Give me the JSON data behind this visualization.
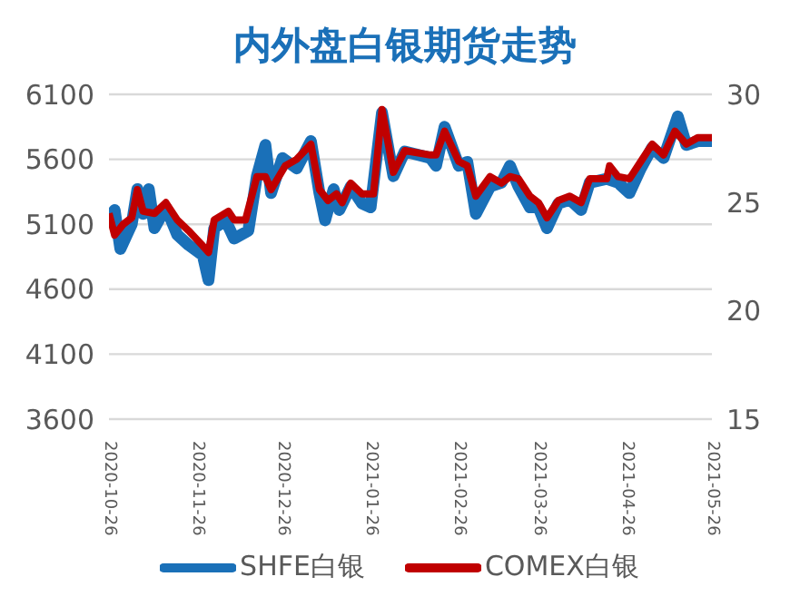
{
  "chart_data": {
    "type": "line",
    "title": "内外盘白银期货走势",
    "xlim": [
      "2020-10-26",
      "2021-05-26"
    ],
    "xticks": [
      "2020-10-26",
      "2020-11-26",
      "2020-12-26",
      "2021-01-26",
      "2021-02-26",
      "2021-03-26",
      "2021-04-26",
      "2021-05-26"
    ],
    "ylim": [
      3600,
      6100
    ],
    "yticks": [
      3600,
      4100,
      4600,
      5100,
      5600,
      6100
    ],
    "y2lim": [
      15,
      30
    ],
    "y2ticks": [
      15,
      20,
      25,
      30
    ],
    "grid": "y",
    "legend": "bottom",
    "line_style": "solid",
    "marker": "none",
    "series": [
      {
        "name": "SHFE白银",
        "color": "#1a70b8",
        "axis": "y",
        "x": [
          "2020-10-26",
          "2020-10-28",
          "2020-10-30",
          "2020-11-03",
          "2020-11-05",
          "2020-11-07",
          "2020-11-09",
          "2020-11-11",
          "2020-11-15",
          "2020-11-19",
          "2020-11-23",
          "2020-11-28",
          "2020-11-30",
          "2020-12-02",
          "2020-12-06",
          "2020-12-09",
          "2020-12-14",
          "2020-12-17",
          "2020-12-20",
          "2020-12-22",
          "2020-12-26",
          "2020-12-31",
          "2021-01-05",
          "2021-01-08",
          "2021-01-10",
          "2021-01-13",
          "2021-01-15",
          "2021-01-19",
          "2021-01-23",
          "2021-01-26",
          "2021-01-30",
          "2021-02-03",
          "2021-02-07",
          "2021-02-16",
          "2021-02-18",
          "2021-02-21",
          "2021-02-26",
          "2021-03-01",
          "2021-03-04",
          "2021-03-09",
          "2021-03-13",
          "2021-03-16",
          "2021-03-19",
          "2021-03-23",
          "2021-03-26",
          "2021-03-29",
          "2021-04-02",
          "2021-04-06",
          "2021-04-10",
          "2021-04-13",
          "2021-04-19",
          "2021-04-23",
          "2021-04-27",
          "2021-05-01",
          "2021-05-05",
          "2021-05-09",
          "2021-05-14",
          "2021-05-17",
          "2021-05-21",
          "2021-05-26"
        ],
        "values": [
          5130,
          5210,
          4910,
          5100,
          5370,
          5180,
          5370,
          5070,
          5230,
          5020,
          4940,
          4860,
          4670,
          5070,
          5130,
          4990,
          5050,
          5470,
          5710,
          5340,
          5610,
          5530,
          5740,
          5340,
          5130,
          5370,
          5210,
          5390,
          5260,
          5230,
          5960,
          5470,
          5660,
          5610,
          5550,
          5850,
          5550,
          5580,
          5180,
          5390,
          5420,
          5550,
          5390,
          5230,
          5230,
          5070,
          5260,
          5290,
          5210,
          5420,
          5450,
          5420,
          5340,
          5530,
          5690,
          5610,
          5930,
          5710,
          5740,
          5740
        ]
      },
      {
        "name": "COMEX白银",
        "color": "#c00000",
        "axis": "y2",
        "x": [
          "2020-10-26",
          "2020-10-28",
          "2020-10-31",
          "2020-11-03",
          "2020-11-05",
          "2020-11-07",
          "2020-11-11",
          "2020-11-15",
          "2020-11-19",
          "2020-11-23",
          "2020-11-28",
          "2020-11-30",
          "2020-12-02",
          "2020-12-07",
          "2020-12-09",
          "2020-12-13",
          "2020-12-17",
          "2020-12-20",
          "2020-12-22",
          "2020-12-27",
          "2020-12-31",
          "2021-01-05",
          "2021-01-08",
          "2021-01-11",
          "2021-01-14",
          "2021-01-16",
          "2021-01-19",
          "2021-01-23",
          "2021-01-27",
          "2021-01-30",
          "2021-02-03",
          "2021-02-07",
          "2021-02-16",
          "2021-02-18",
          "2021-02-21",
          "2021-02-26",
          "2021-03-01",
          "2021-03-04",
          "2021-03-09",
          "2021-03-13",
          "2021-03-16",
          "2021-03-19",
          "2021-03-23",
          "2021-03-26",
          "2021-03-29",
          "2021-04-02",
          "2021-04-06",
          "2021-04-10",
          "2021-04-13",
          "2021-04-19",
          "2021-04-20",
          "2021-04-23",
          "2021-04-27",
          "2021-05-01",
          "2021-05-05",
          "2021-05-09",
          "2021-05-13",
          "2021-05-17",
          "2021-05-21",
          "2021-05-26"
        ],
        "values": [
          24.5,
          23.5,
          24.0,
          24.3,
          25.6,
          24.6,
          24.5,
          25.0,
          24.2,
          23.7,
          23.0,
          22.7,
          24.2,
          24.6,
          24.2,
          24.2,
          26.2,
          26.2,
          25.6,
          26.7,
          27.0,
          27.7,
          25.6,
          25.1,
          25.4,
          25.0,
          25.9,
          25.4,
          25.4,
          29.3,
          26.4,
          27.4,
          27.2,
          27.2,
          28.3,
          26.9,
          26.7,
          25.3,
          26.2,
          25.9,
          26.2,
          26.1,
          25.3,
          25.0,
          24.3,
          25.1,
          25.3,
          25.0,
          26.1,
          26.1,
          26.7,
          26.2,
          26.1,
          26.9,
          27.7,
          27.2,
          28.3,
          27.7,
          28.0,
          28.0
        ]
      }
    ]
  }
}
